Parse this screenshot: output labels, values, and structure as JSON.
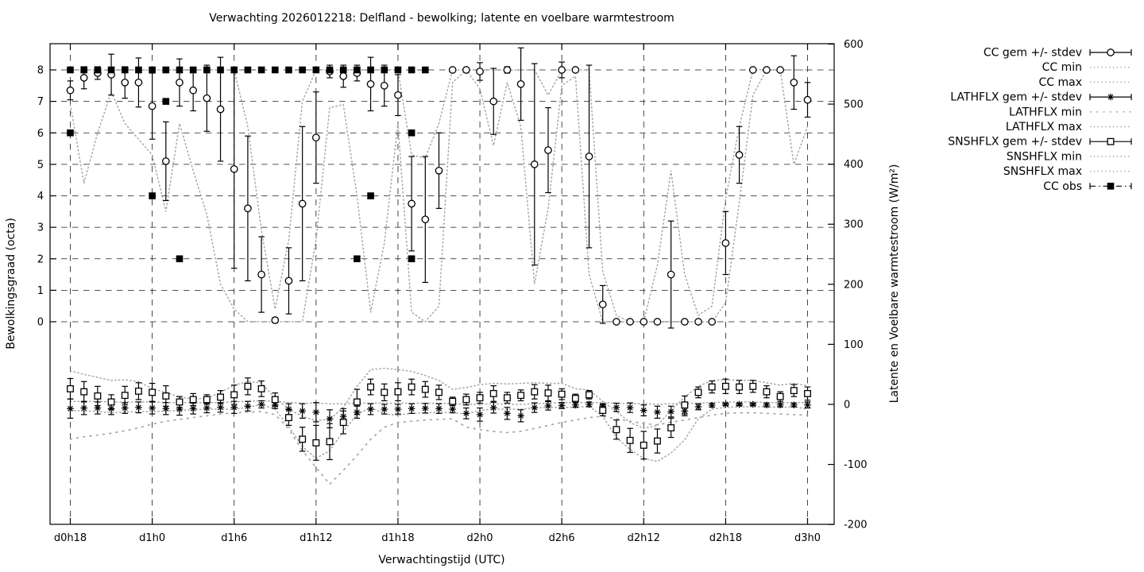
{
  "title": "Verwachting 2026012218: Delfland - bewolking; latente en voelbare warmtestroom",
  "colors": {
    "series": "#000000",
    "envelope": "#a6a6a6",
    "background": "#ffffff"
  },
  "legend": [
    {
      "label": "CC gem +/- stdev",
      "style": "errorbar-circle"
    },
    {
      "label": "CC min",
      "style": "dotted"
    },
    {
      "label": "CC max",
      "style": "dotted"
    },
    {
      "label": "LATHFLX gem +/- stdev",
      "style": "errorbar-star"
    },
    {
      "label": "LATHFLX min",
      "style": "dotted-sparse"
    },
    {
      "label": "LATHFLX max",
      "style": "dotted"
    },
    {
      "label": "SNSHFLX gem +/- stdev",
      "style": "errorbar-square"
    },
    {
      "label": "SNSHFLX min",
      "style": "dotted"
    },
    {
      "label": "SNSHFLX max",
      "style": "dotted"
    },
    {
      "label": "CC obs",
      "style": "dashdot-fsquare"
    }
  ],
  "chart_data": {
    "type": "line",
    "title": "Verwachting 2026012218: Delfland - bewolking; latente en voelbare warmtestroom",
    "xlabel": "Verwachtingstijd (UTC)",
    "ylabel_left": "Bewolkingsgraad (octa)",
    "ylabel_right": "Latente en Voelbare warmtestroom (W/m²)",
    "x_tick_positions": [
      0,
      6,
      12,
      18,
      24,
      30,
      36,
      42,
      48,
      54
    ],
    "x_tick_labels": [
      "d0h18",
      "d1h0",
      "d1h6",
      "d1h12",
      "d1h18",
      "d2h0",
      "d2h6",
      "d2h12",
      "d2h18",
      "d3h0"
    ],
    "left_ticks": [
      0,
      1,
      2,
      3,
      4,
      5,
      6,
      7,
      8
    ],
    "right_ticks": [
      -200,
      -100,
      0,
      100,
      200,
      300,
      400,
      500,
      600
    ],
    "ylim_left": [
      -6.45,
      8.84
    ],
    "ylim_right": [
      -200,
      600
    ],
    "grid": true,
    "legend_position": "outside-right-top",
    "hours": 55,
    "series": [
      {
        "name": "CC gem",
        "axis": "left",
        "marker": "circle",
        "values": [
          7.35,
          7.75,
          7.9,
          7.85,
          7.6,
          7.6,
          6.85,
          5.1,
          7.6,
          7.35,
          7.1,
          6.75,
          4.85,
          3.6,
          1.5,
          0.05,
          1.3,
          3.75,
          5.85,
          7.95,
          7.8,
          7.9,
          7.55,
          7.5,
          7.2,
          3.75,
          3.25,
          4.8,
          8,
          8,
          7.95,
          7.0,
          8,
          7.55,
          5.0,
          5.45,
          8,
          8,
          5.25,
          0.55,
          0,
          0,
          0,
          0,
          1.5,
          0,
          0,
          0,
          2.5,
          5.3,
          8,
          8,
          8,
          7.6,
          7.05
        ],
        "std": [
          0.3,
          0.35,
          0.2,
          0.65,
          0.5,
          0.78,
          1.05,
          1.25,
          0.75,
          0.65,
          1.05,
          1.65,
          3.15,
          2.3,
          1.2,
          0.08,
          1.05,
          2.45,
          1.45,
          0.2,
          0.35,
          0.25,
          0.85,
          0.65,
          0.65,
          1.5,
          2.0,
          1.2,
          0,
          0,
          0.28,
          1.05,
          0.1,
          1.15,
          3.2,
          1.35,
          0.25,
          0,
          2.9,
          0.6,
          0,
          0,
          0,
          0,
          1.7,
          0,
          0,
          0,
          1.0,
          0.9,
          0,
          0,
          0,
          0.85,
          0.55
        ]
      },
      {
        "name": "CC min",
        "axis": "left",
        "style": "dotted",
        "values": [
          6.9,
          4.4,
          6.0,
          7.3,
          6.3,
          5.8,
          5.3,
          3.5,
          6.3,
          4.8,
          3.4,
          1.2,
          0.4,
          0,
          0,
          0,
          0,
          0,
          2.6,
          6.8,
          6.9,
          4.0,
          0.3,
          2.5,
          6.3,
          0.3,
          0,
          0.5,
          7.6,
          8,
          7.4,
          5.6,
          7.6,
          6.2,
          1.2,
          3.6,
          7.5,
          7.8,
          1.5,
          0,
          0,
          0,
          0,
          0,
          0,
          0,
          0,
          0,
          0.6,
          3.8,
          7.2,
          8,
          8,
          5.0,
          6.2
        ]
      },
      {
        "name": "CC max",
        "axis": "left",
        "style": "dotted",
        "values": [
          8,
          8,
          8,
          8,
          8,
          8,
          8,
          8,
          8,
          8,
          8,
          8,
          8,
          6.2,
          2.9,
          0.4,
          2.6,
          7.0,
          8,
          8,
          8,
          8,
          8,
          8,
          8,
          5.3,
          5.2,
          6.3,
          8,
          8,
          8,
          8,
          8,
          8,
          8,
          7.2,
          8,
          8,
          8,
          1.6,
          0.2,
          0,
          0,
          1.8,
          4.8,
          1.5,
          0.2,
          0.5,
          3.9,
          6.2,
          8,
          8,
          8,
          8,
          8
        ]
      },
      {
        "name": "LATHFLX gem",
        "axis": "right",
        "marker": "star",
        "values": [
          -7,
          -6,
          -6,
          -7,
          -6,
          -5,
          -6,
          -7,
          -8,
          -7,
          -6,
          -5,
          -5,
          -3,
          0,
          -1,
          -8,
          -11,
          -13,
          -24,
          -20,
          -13,
          -8,
          -8,
          -8,
          -7,
          -6.5,
          -7,
          -8,
          -15,
          -17,
          -5.5,
          -15,
          -19,
          -5.5,
          -2.5,
          -2,
          -1,
          0,
          -3,
          -5,
          -5.5,
          -10,
          -13,
          -12,
          -11,
          -4,
          -1.5,
          0,
          0,
          0,
          -1,
          -1,
          -1,
          -1
        ],
        "std": [
          16,
          11,
          10,
          10,
          9,
          9,
          10,
          10,
          10,
          9,
          8,
          8,
          10,
          8,
          6,
          6,
          9,
          12,
          16,
          15,
          13,
          10,
          9,
          8,
          8,
          8,
          8,
          8,
          6,
          9,
          11,
          9,
          10,
          10,
          8,
          7,
          5,
          4,
          4,
          4,
          7,
          8,
          9,
          10,
          9,
          8,
          5,
          3,
          2,
          2,
          2,
          3,
          3,
          3,
          5
        ]
      },
      {
        "name": "LATHFLX min",
        "axis": "right",
        "style": "dotted-sparse",
        "values": [
          -58,
          -54,
          -51,
          -48,
          -44,
          -39,
          -33,
          -28,
          -25,
          -22,
          -19,
          -16,
          -14,
          -13,
          -12,
          -17,
          -41,
          -77,
          -105,
          -133,
          -110,
          -85,
          -58,
          -38,
          -30,
          -28,
          -26,
          -25,
          -24,
          -38,
          -42,
          -45,
          -47,
          -45,
          -40,
          -35,
          -30,
          -26,
          -22,
          -20,
          -24,
          -28,
          -32,
          -34,
          -30,
          -26,
          -22,
          -18,
          -15,
          -14,
          -14,
          -15,
          -16,
          -17,
          -18
        ]
      },
      {
        "name": "LATHFLX max",
        "axis": "right",
        "style": "dotted",
        "values": [
          5,
          5,
          5,
          4,
          4,
          4,
          4,
          3,
          3,
          3,
          3,
          3,
          4,
          5,
          6,
          5,
          3,
          2,
          2,
          1,
          1,
          2,
          2,
          2,
          2,
          2,
          2,
          2,
          1,
          0,
          0,
          1,
          0,
          0,
          1,
          2,
          3,
          3,
          3,
          3,
          2,
          1,
          1,
          0,
          1,
          1,
          2,
          3,
          4,
          4,
          4,
          3,
          3,
          3,
          3
        ]
      },
      {
        "name": "SNSHFLX gem",
        "axis": "right",
        "marker": "square",
        "values": [
          26,
          21,
          14,
          4,
          15,
          22,
          20,
          14,
          4,
          8,
          8,
          12,
          16,
          30,
          26,
          8,
          -22,
          -58,
          -64,
          -62,
          -30,
          4,
          29,
          20,
          21,
          29,
          25,
          20,
          5,
          8,
          11,
          18,
          11,
          15,
          21,
          19,
          17,
          10,
          16,
          -10,
          -42,
          -60,
          -68,
          -61,
          -39,
          -1,
          20,
          29,
          30,
          29,
          30,
          21,
          13,
          23,
          18
        ],
        "std": [
          17,
          17,
          16,
          12,
          15,
          14,
          15,
          17,
          9,
          10,
          8,
          11,
          16,
          14,
          13,
          11,
          13,
          20,
          29,
          30,
          19,
          21,
          13,
          14,
          15,
          13,
          13,
          12,
          7,
          9,
          9,
          13,
          9,
          9,
          12,
          13,
          9,
          7,
          7,
          9,
          16,
          20,
          23,
          20,
          16,
          15,
          9,
          10,
          12,
          11,
          10,
          10,
          8,
          10,
          11
        ]
      },
      {
        "name": "SNSHFLX min",
        "axis": "right",
        "style": "dotted",
        "values": [
          -10,
          -11,
          -12,
          -14,
          -13,
          -12,
          -12,
          -11,
          -10,
          -9,
          -8,
          -8,
          -8,
          -5,
          0,
          -8,
          -37,
          -70,
          -90,
          -77,
          -45,
          -17,
          -5,
          -16,
          -18,
          -15,
          -14,
          -13,
          -14,
          -16,
          -10,
          -8,
          -8,
          -8,
          -6,
          -5,
          -5,
          -5,
          -3,
          -20,
          -55,
          -75,
          -90,
          -95,
          -81,
          -59,
          -24,
          -8,
          -5,
          -4,
          -4,
          -4,
          -5,
          -4,
          -8
        ]
      },
      {
        "name": "SNSHFLX max",
        "axis": "right",
        "style": "dotted",
        "values": [
          56,
          50,
          45,
          40,
          41,
          38,
          26,
          20,
          12,
          9,
          10,
          20,
          32,
          38,
          36,
          10,
          -8,
          -20,
          -27,
          -25,
          -5,
          30,
          58,
          60,
          58,
          55,
          48,
          40,
          25,
          28,
          33,
          35,
          34,
          35,
          36,
          35,
          35,
          26,
          24,
          5,
          -12,
          -30,
          -40,
          -35,
          -10,
          12,
          30,
          40,
          41,
          40,
          40,
          36,
          32,
          35,
          31
        ]
      }
    ],
    "cc_obs_points": [
      [
        0,
        8
      ],
      [
        1,
        8
      ],
      [
        2,
        8
      ],
      [
        3,
        8
      ],
      [
        4,
        8
      ],
      [
        5,
        8
      ],
      [
        6,
        8
      ],
      [
        7,
        8
      ],
      [
        8,
        8
      ],
      [
        9,
        8
      ],
      [
        10,
        8
      ],
      [
        11,
        8
      ],
      [
        12,
        8
      ],
      [
        13,
        8
      ],
      [
        14,
        8
      ],
      [
        15,
        8
      ],
      [
        16,
        8
      ],
      [
        17,
        8
      ],
      [
        18,
        8
      ],
      [
        19,
        8
      ],
      [
        20,
        8
      ],
      [
        21,
        8
      ],
      [
        22,
        8
      ],
      [
        23,
        8
      ],
      [
        24,
        8
      ],
      [
        25,
        8
      ],
      [
        26,
        8
      ],
      [
        0,
        6
      ],
      [
        6,
        4
      ],
      [
        7,
        7
      ],
      [
        8,
        2
      ],
      [
        21,
        2
      ],
      [
        22,
        4
      ],
      [
        25,
        6
      ],
      [
        25,
        2
      ]
    ]
  }
}
